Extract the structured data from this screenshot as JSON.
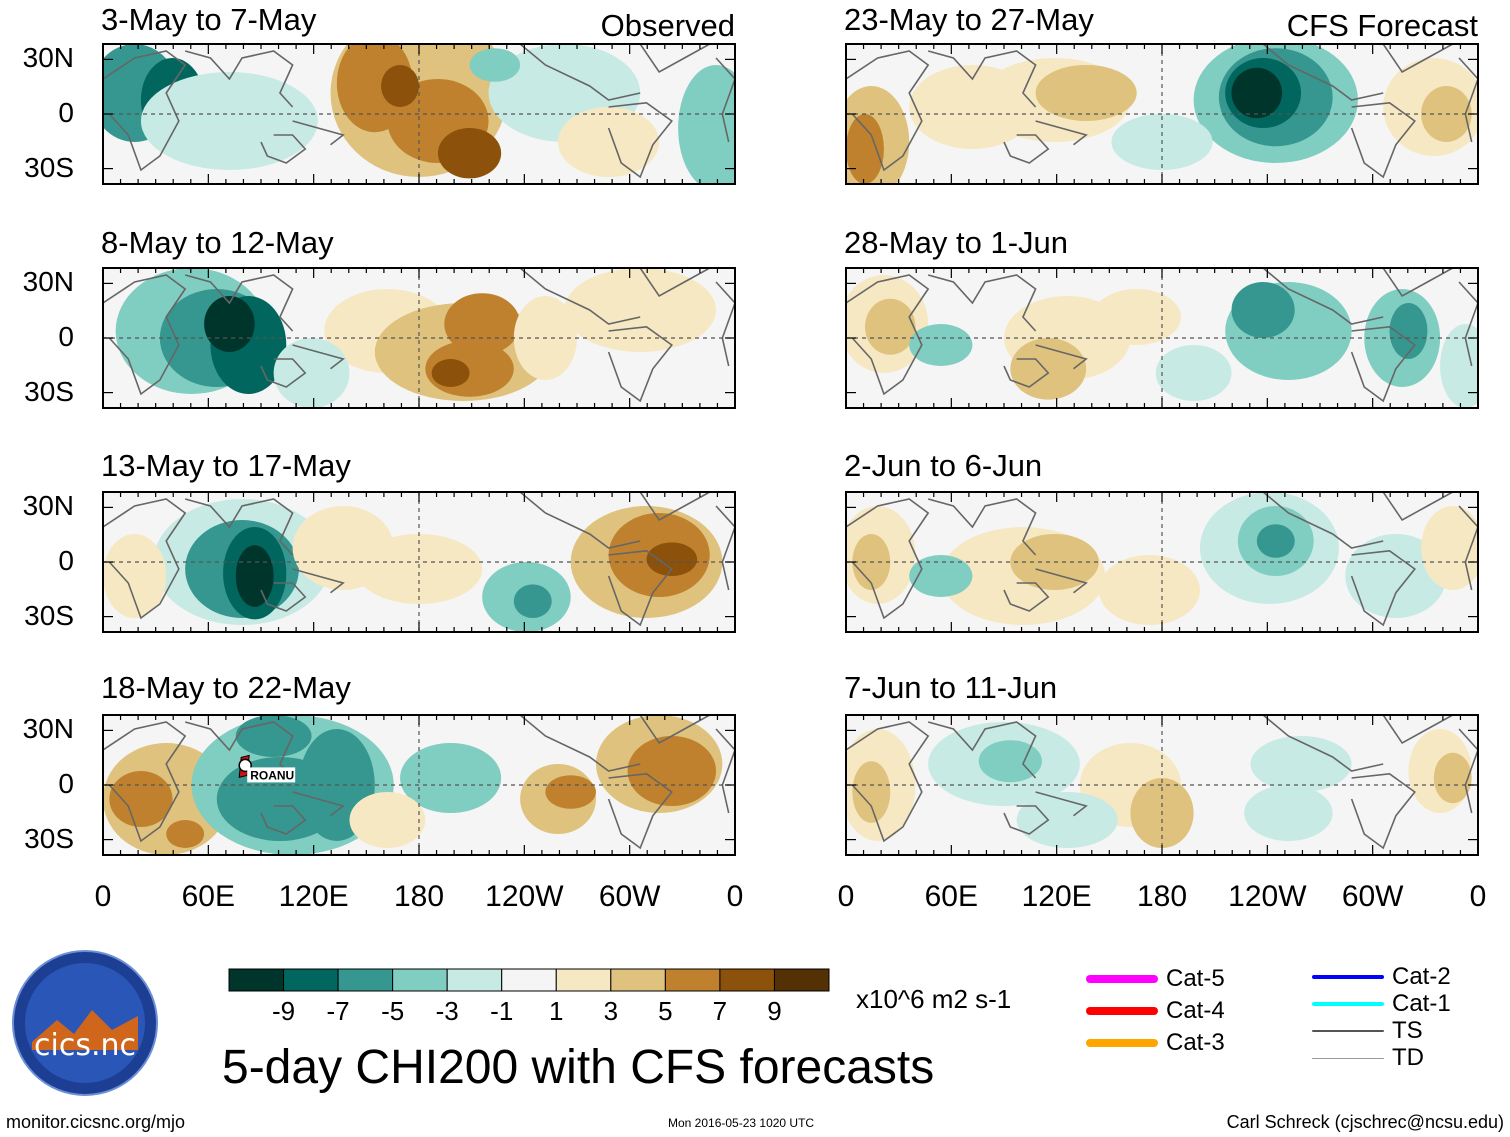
{
  "panels": [
    {
      "title": "3-May to 7-May",
      "label": "Observed"
    },
    {
      "title": "8-May to 12-May",
      "label": ""
    },
    {
      "title": "13-May to 17-May",
      "label": ""
    },
    {
      "title": "18-May to 22-May",
      "label": ""
    },
    {
      "title": "23-May to 27-May",
      "label": "CFS Forecast"
    },
    {
      "title": "28-May to 1-Jun",
      "label": ""
    },
    {
      "title": "2-Jun to 6-Jun",
      "label": ""
    },
    {
      "title": "7-Jun to 11-Jun",
      "label": ""
    }
  ],
  "y_labels": [
    "30N",
    "0",
    "30S"
  ],
  "x_labels": [
    "0",
    "60E",
    "120E",
    "180",
    "120W",
    "60W",
    "0"
  ],
  "storm_label": "ROANU",
  "colorbar": {
    "ticks": [
      "-9",
      "-7",
      "-5",
      "-3",
      "-1",
      "1",
      "3",
      "5",
      "7",
      "9"
    ],
    "colors": [
      "#00352c",
      "#01665e",
      "#35978f",
      "#80cdc1",
      "#c7eae5",
      "#f5f5f5",
      "#f6e8c3",
      "#dfc27d",
      "#bf812d",
      "#8c510a",
      "#543005"
    ],
    "units": "x10^6 m2 s-1"
  },
  "legend": [
    {
      "label": "Cat-5",
      "color": "#ff00ff"
    },
    {
      "label": "Cat-4",
      "color": "#ff0000"
    },
    {
      "label": "Cat-3",
      "color": "#ffa500"
    },
    {
      "label": "Cat-2",
      "color": "#0000ff"
    },
    {
      "label": "Cat-1",
      "color": "#00ffff"
    },
    {
      "label": "TS",
      "color": "#555555"
    },
    {
      "label": "TD",
      "color": "#999999"
    }
  ],
  "logo": {
    "text": "cics.nc"
  },
  "main_title": "5-day CHI200 with CFS forecasts",
  "footer": {
    "left": "monitor.cicsnc.org/mjo",
    "center": "Mon 2016-05-23 1020 UTC",
    "right": "Carl Schreck (cjschrec@ncsu.edu)"
  }
}
